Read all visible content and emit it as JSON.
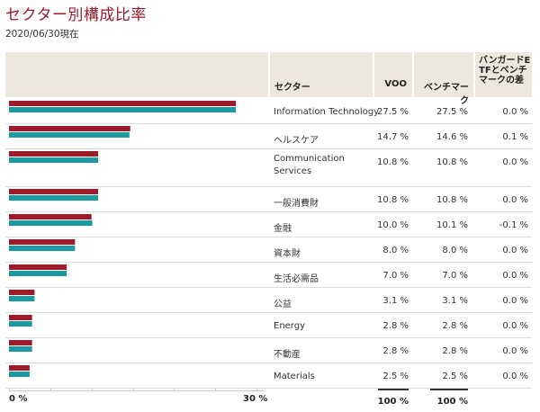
{
  "title": "セクター別構成比率",
  "as_of": "2020/06/30現在",
  "columns": {
    "sector": "セクター",
    "fund": "VOO",
    "benchmark": "ベンチマーク",
    "diff": "バンガードETFとベンチマークの差"
  },
  "colors": {
    "fund": "#9b1b2a",
    "benchmark": "#1a9aa3"
  },
  "axis": {
    "min_label": "0 %",
    "max_label": "30 %"
  },
  "totals": {
    "fund": "100 %",
    "benchmark": "100 %"
  },
  "rows": [
    {
      "sector": "Information Technology",
      "fund": "27.5 %",
      "benchmark": "27.5 %",
      "diff": "0.0 %"
    },
    {
      "sector": "ヘルスケア",
      "fund": "14.7 %",
      "benchmark": "14.6 %",
      "diff": "0.1 %"
    },
    {
      "sector": "Communication Services",
      "fund": "10.8 %",
      "benchmark": "10.8 %",
      "diff": "0.0 %"
    },
    {
      "sector": "一般消費財",
      "fund": "10.8 %",
      "benchmark": "10.8 %",
      "diff": "0.0 %"
    },
    {
      "sector": "金融",
      "fund": "10.0 %",
      "benchmark": "10.1 %",
      "diff": "-0.1 %"
    },
    {
      "sector": "資本財",
      "fund": "8.0 %",
      "benchmark": "8.0 %",
      "diff": "0.0 %"
    },
    {
      "sector": "生活必需品",
      "fund": "7.0 %",
      "benchmark": "7.0 %",
      "diff": "0.0 %"
    },
    {
      "sector": "公益",
      "fund": "3.1 %",
      "benchmark": "3.1 %",
      "diff": "0.0 %"
    },
    {
      "sector": "Energy",
      "fund": "2.8 %",
      "benchmark": "2.8 %",
      "diff": "0.0 %"
    },
    {
      "sector": "不動産",
      "fund": "2.8 %",
      "benchmark": "2.8 %",
      "diff": "0.0 %"
    },
    {
      "sector": "Materials",
      "fund": "2.5 %",
      "benchmark": "2.5 %",
      "diff": "0.0 %"
    }
  ],
  "chart_data": {
    "type": "bar",
    "orientation": "horizontal",
    "categories": [
      "Information Technology",
      "ヘルスケア",
      "Communication Services",
      "一般消費財",
      "金融",
      "資本財",
      "生活必需品",
      "公益",
      "Energy",
      "不動産",
      "Materials"
    ],
    "series": [
      {
        "name": "VOO",
        "values": [
          27.5,
          14.7,
          10.8,
          10.8,
          10.0,
          8.0,
          7.0,
          3.1,
          2.8,
          2.8,
          2.5
        ]
      },
      {
        "name": "ベンチマーク",
        "values": [
          27.5,
          14.6,
          10.8,
          10.8,
          10.1,
          8.0,
          7.0,
          3.1,
          2.8,
          2.8,
          2.5
        ]
      }
    ],
    "xlim": [
      0,
      30
    ],
    "title": "セクター別構成比率"
  }
}
